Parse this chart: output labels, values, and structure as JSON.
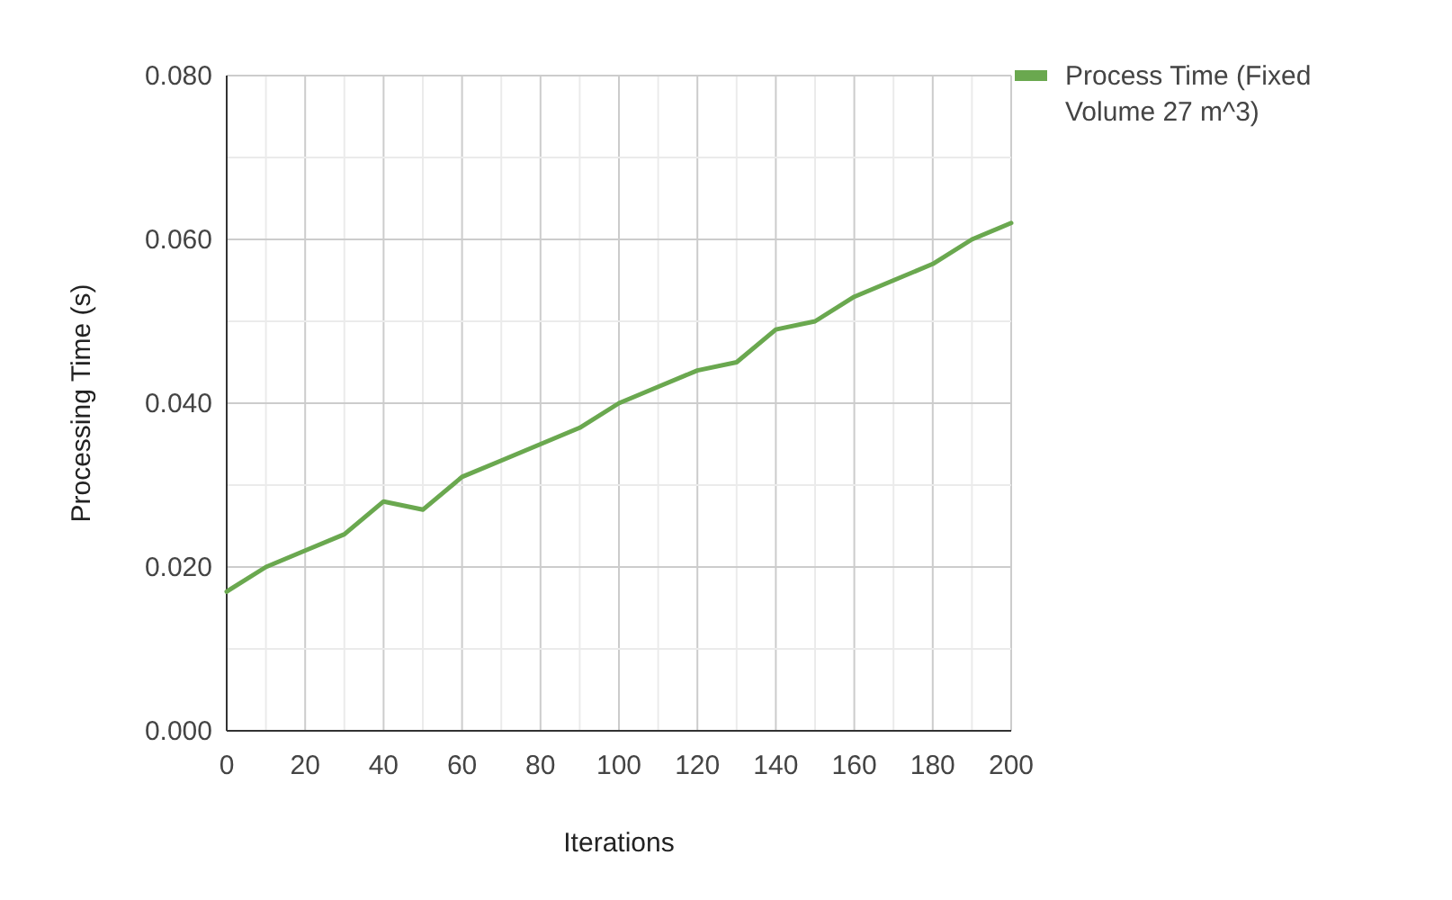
{
  "chart_data": {
    "type": "line",
    "xlabel": "Iterations",
    "ylabel": "Processing Time (s)",
    "x": [
      0,
      10,
      20,
      30,
      40,
      50,
      60,
      70,
      80,
      90,
      100,
      110,
      120,
      130,
      140,
      150,
      160,
      170,
      180,
      190,
      200
    ],
    "series": [
      {
        "name": "Process Time (Fixed Volume 27 m^3)",
        "color": "#6aa84f",
        "values": [
          0.017,
          0.02,
          0.022,
          0.024,
          0.028,
          0.027,
          0.031,
          0.033,
          0.035,
          0.037,
          0.04,
          0.042,
          0.044,
          0.045,
          0.049,
          0.05,
          0.053,
          0.055,
          0.057,
          0.06,
          0.062
        ]
      }
    ],
    "xlim": [
      0,
      200
    ],
    "xticks": [
      0,
      {
        "value": 10,
        "label": null
      },
      20,
      {
        "value": 30,
        "label": null
      },
      40,
      {
        "value": 50,
        "label": null
      },
      60,
      {
        "value": 70,
        "label": null
      },
      80,
      {
        "value": 90,
        "label": null
      },
      100,
      {
        "value": 110,
        "label": null
      },
      120,
      {
        "value": 130,
        "label": null
      },
      140,
      {
        "value": 150,
        "label": null
      },
      160,
      {
        "value": 170,
        "label": null
      },
      180,
      {
        "value": 190,
        "label": null
      },
      200
    ],
    "ylim": [
      0,
      0.08
    ],
    "yticks": [
      {
        "value": 0,
        "label": "0.000"
      },
      {
        "value": 0.01,
        "label": null
      },
      {
        "value": 0.02,
        "label": "0.020"
      },
      {
        "value": 0.03,
        "label": null
      },
      {
        "value": 0.04,
        "label": "0.040"
      },
      {
        "value": 0.05,
        "label": null
      },
      {
        "value": 0.06,
        "label": "0.060"
      },
      {
        "value": 0.07,
        "label": null
      },
      {
        "value": 0.08,
        "label": "0.080"
      }
    ],
    "grid": true,
    "legend": "right",
    "marker": "none",
    "line_style": "solid"
  }
}
